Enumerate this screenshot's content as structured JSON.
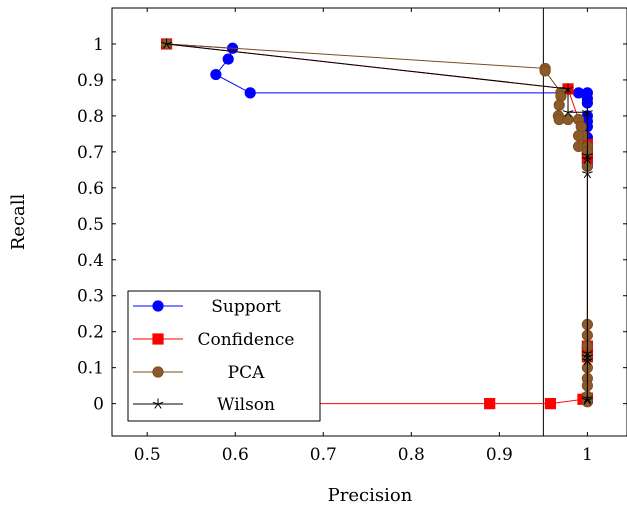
{
  "chart_data": {
    "type": "line",
    "xlabel": "Precision",
    "ylabel": "Recall",
    "xlim": [
      0.46,
      1.045
    ],
    "ylim": [
      -0.09,
      1.1
    ],
    "x_ticks": [
      0.5,
      0.6,
      0.7,
      0.8,
      0.9,
      1
    ],
    "x_tick_labels": [
      "0.5",
      "0.6",
      "0.7",
      "0.8",
      "0.9",
      "1"
    ],
    "y_ticks": [
      0,
      0.1,
      0.2,
      0.3,
      0.4,
      0.5,
      0.6,
      0.7,
      0.8,
      0.9,
      1
    ],
    "y_tick_labels": [
      "0",
      "0.1",
      "0.2",
      "0.3",
      "0.4",
      "0.5",
      "0.6",
      "0.7",
      "0.8",
      "0.9",
      "1"
    ],
    "grid": false,
    "legend_position": "bottom-left",
    "reference_line": {
      "orientation": "vertical",
      "x": 0.95,
      "color": "#000000"
    },
    "series": [
      {
        "name": "Support",
        "color": "#0000ff",
        "marker": "circle",
        "points": [
          [
            0.522,
            1.0
          ],
          [
            0.597,
            0.988
          ],
          [
            0.592,
            0.958
          ],
          [
            0.578,
            0.915
          ],
          [
            0.617,
            0.864
          ],
          [
            0.99,
            0.864
          ],
          [
            1.0,
            0.864
          ],
          [
            1.0,
            0.848
          ],
          [
            1.0,
            0.836
          ],
          [
            1.0,
            0.8
          ],
          [
            1.0,
            0.785
          ],
          [
            1.0,
            0.77
          ],
          [
            1.0,
            0.74
          ],
          [
            1.0,
            0.725
          ],
          [
            1.0,
            0.71
          ],
          [
            1.0,
            0.695
          ],
          [
            1.0,
            0.68
          ],
          [
            1.0,
            0.67
          ],
          [
            1.0,
            0.66
          ]
        ]
      },
      {
        "name": "Confidence",
        "color": "#ff0000",
        "marker": "square",
        "points": [
          [
            0.522,
            1.0
          ],
          [
            0.978,
            0.875
          ],
          [
            1.0,
            0.72
          ],
          [
            1.0,
            0.7
          ],
          [
            1.0,
            0.685
          ],
          [
            1.0,
            0.16
          ],
          [
            1.0,
            0.145
          ],
          [
            1.0,
            0.13
          ],
          [
            1.0,
            0.015
          ],
          [
            0.995,
            0.012
          ],
          [
            0.958,
            0.0
          ],
          [
            0.889,
            0.0
          ],
          [
            0.522,
            0.0
          ]
        ]
      },
      {
        "name": "PCA",
        "color": "#7a4b1a",
        "fill": "#8b5a2b",
        "marker": "circle",
        "points": [
          [
            0.522,
            1.0
          ],
          [
            0.952,
            0.932
          ],
          [
            0.952,
            0.925
          ],
          [
            0.97,
            0.865
          ],
          [
            0.97,
            0.855
          ],
          [
            0.968,
            0.83
          ],
          [
            0.967,
            0.8
          ],
          [
            0.968,
            0.79
          ],
          [
            0.978,
            0.79
          ],
          [
            0.99,
            0.79
          ],
          [
            0.993,
            0.77
          ],
          [
            0.995,
            0.745
          ],
          [
            0.99,
            0.745
          ],
          [
            0.99,
            0.715
          ],
          [
            1.0,
            0.715
          ],
          [
            1.0,
            0.7
          ],
          [
            1.0,
            0.66
          ],
          [
            1.0,
            0.22
          ],
          [
            1.0,
            0.19
          ],
          [
            1.0,
            0.16
          ],
          [
            1.0,
            0.13
          ],
          [
            1.0,
            0.1
          ],
          [
            1.0,
            0.07
          ],
          [
            1.0,
            0.05
          ],
          [
            1.0,
            0.02
          ],
          [
            1.0,
            0.005
          ]
        ]
      },
      {
        "name": "Wilson",
        "color": "#000000",
        "marker": "star",
        "points": [
          [
            0.522,
            1.0
          ],
          [
            0.978,
            0.875
          ],
          [
            0.978,
            0.81
          ],
          [
            1.0,
            0.81
          ],
          [
            1.0,
            0.69
          ],
          [
            1.0,
            0.68
          ],
          [
            1.0,
            0.64
          ],
          [
            1.0,
            0.14
          ],
          [
            1.0,
            0.13
          ],
          [
            1.0,
            0.12
          ],
          [
            1.0,
            0.015
          ],
          [
            1.0,
            0.01
          ]
        ]
      }
    ]
  }
}
